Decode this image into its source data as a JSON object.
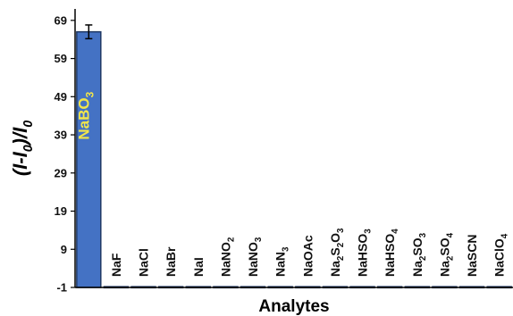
{
  "chart_data": {
    "type": "bar",
    "categories": [
      "NaBO3",
      "NaF",
      "NaCl",
      "NaBr",
      "NaI",
      "NaNO2",
      "NaNO3",
      "NaN3",
      "NaOAc",
      "Na2S2O3",
      "NaHSO3",
      "NaHSO4",
      "Na2SO3",
      "Na2SO4",
      "NaSCN",
      "NaClO4"
    ],
    "category_labels": [
      [
        [
          "NaBO",
          ""
        ],
        [
          "3",
          "sub"
        ]
      ],
      [
        [
          "NaF",
          ""
        ]
      ],
      [
        [
          "NaCl",
          ""
        ]
      ],
      [
        [
          "NaBr",
          ""
        ]
      ],
      [
        [
          "NaI",
          ""
        ]
      ],
      [
        [
          "NaNO",
          ""
        ],
        [
          "2",
          "sub"
        ]
      ],
      [
        [
          "NaNO",
          ""
        ],
        [
          "3",
          "sub"
        ]
      ],
      [
        [
          "NaN",
          ""
        ],
        [
          "3",
          "sub"
        ]
      ],
      [
        [
          "NaOAc",
          ""
        ]
      ],
      [
        [
          "Na",
          ""
        ],
        [
          "2",
          "sub"
        ],
        [
          "S",
          ""
        ],
        [
          "2",
          "sub"
        ],
        [
          "O",
          ""
        ],
        [
          "3",
          "sub"
        ]
      ],
      [
        [
          "NaHSO",
          ""
        ],
        [
          "3",
          "sub"
        ]
      ],
      [
        [
          "NaHSO",
          ""
        ],
        [
          "4",
          "sub"
        ]
      ],
      [
        [
          "Na",
          ""
        ],
        [
          "2",
          "sub"
        ],
        [
          "SO",
          ""
        ],
        [
          "3",
          "sub"
        ]
      ],
      [
        [
          "Na",
          ""
        ],
        [
          "2",
          "sub"
        ],
        [
          "SO",
          ""
        ],
        [
          "4",
          "sub"
        ]
      ],
      [
        [
          "NaSCN",
          ""
        ]
      ],
      [
        [
          "NaClO",
          ""
        ],
        [
          "4",
          "sub"
        ]
      ]
    ],
    "values": [
      66,
      -0.8,
      -0.8,
      -0.8,
      -0.8,
      -0.8,
      -0.8,
      -0.8,
      -0.8,
      -0.8,
      -0.8,
      -0.8,
      -0.8,
      -0.8,
      -0.8,
      -0.8
    ],
    "errors": [
      1.8,
      0,
      0,
      0,
      0,
      0,
      0,
      0,
      0,
      0,
      0,
      0,
      0,
      0,
      0,
      0
    ],
    "xlabel": "Analytes",
    "ylabel_parts": [
      [
        "(I-I",
        ""
      ],
      [
        "0",
        "sub"
      ],
      [
        ")/I",
        ""
      ],
      [
        "0",
        "sub"
      ]
    ],
    "yticks": [
      -1,
      9,
      19,
      29,
      39,
      49,
      59,
      69
    ],
    "ylim": [
      -1,
      72
    ],
    "grid": false,
    "colors": {
      "bar_fill": "#4472c4",
      "bar_stroke": "#1f3864",
      "bar_text": "#f2e64a",
      "axis": "#000000"
    }
  }
}
